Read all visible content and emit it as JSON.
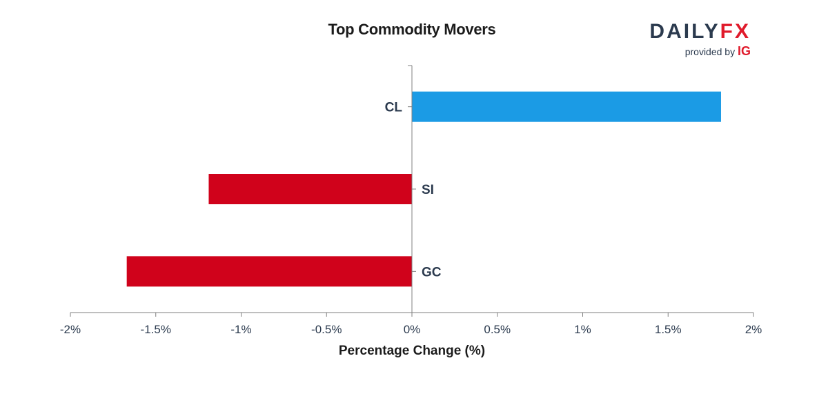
{
  "header": {
    "title": "Top Commodity Movers"
  },
  "logo": {
    "brand_part1": "DAILY",
    "brand_part2": "FX",
    "provided_by": "provided by",
    "provider": "IG"
  },
  "colors": {
    "positive": "#1b9be5",
    "negative": "#d0021b",
    "axis": "#7f7f7f",
    "text": "#2b3a4e"
  },
  "chart_data": {
    "type": "bar",
    "orientation": "horizontal",
    "title": "Top Commodity Movers",
    "xlabel": "Percentage Change (%)",
    "ylabel": "",
    "categories": [
      "CL",
      "SI",
      "GC"
    ],
    "values": [
      1.81,
      -1.19,
      -1.67
    ],
    "xlim": [
      -2,
      2
    ],
    "xticks": [
      -2,
      -1.5,
      -1,
      -0.5,
      0,
      0.5,
      1,
      1.5,
      2
    ],
    "xtick_labels": [
      "-2%",
      "-1.5%",
      "-1%",
      "-0.5%",
      "0%",
      "0.5%",
      "1%",
      "1.5%",
      "2%"
    ],
    "grid": false,
    "legend": "none"
  }
}
